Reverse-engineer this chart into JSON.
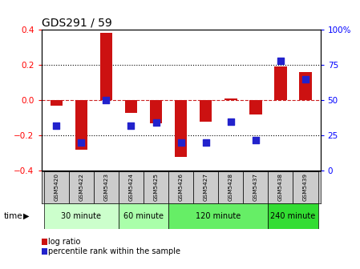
{
  "title": "GDS291 / 59",
  "samples": [
    "GSM5420",
    "GSM5422",
    "GSM5423",
    "GSM5424",
    "GSM5425",
    "GSM5426",
    "GSM5427",
    "GSM5428",
    "GSM5437",
    "GSM5438",
    "GSM5439"
  ],
  "log_ratio": [
    -0.03,
    -0.28,
    0.38,
    -0.07,
    -0.13,
    -0.32,
    -0.12,
    0.01,
    -0.08,
    0.19,
    0.16
  ],
  "percentile_rank": [
    32,
    20,
    50,
    32,
    34,
    20,
    20,
    35,
    22,
    78,
    65
  ],
  "time_groups": [
    {
      "label": "30 minute",
      "start": 0,
      "end": 3
    },
    {
      "label": "60 minute",
      "start": 3,
      "end": 5
    },
    {
      "label": "120 minute",
      "start": 5,
      "end": 9
    },
    {
      "label": "240 minute",
      "start": 9,
      "end": 11
    }
  ],
  "time_colors": [
    "#ccffcc",
    "#aaffaa",
    "#66ee66",
    "#33dd33"
  ],
  "ylim": [
    -0.4,
    0.4
  ],
  "yticks_left": [
    -0.4,
    -0.2,
    0.0,
    0.2,
    0.4
  ],
  "yticks_right_labels": [
    "0",
    "25",
    "50",
    "75",
    "100%"
  ],
  "bar_color": "#cc1111",
  "dot_color": "#2222cc",
  "bar_width": 0.5,
  "dot_size": 30,
  "bg_color": "#ffffff",
  "plot_bg": "#ffffff",
  "zero_line_color": "#cc2222",
  "legend_log_ratio": "log ratio",
  "legend_percentile": "percentile rank within the sample",
  "xlabel_time": "time",
  "sample_row_color": "#cccccc"
}
